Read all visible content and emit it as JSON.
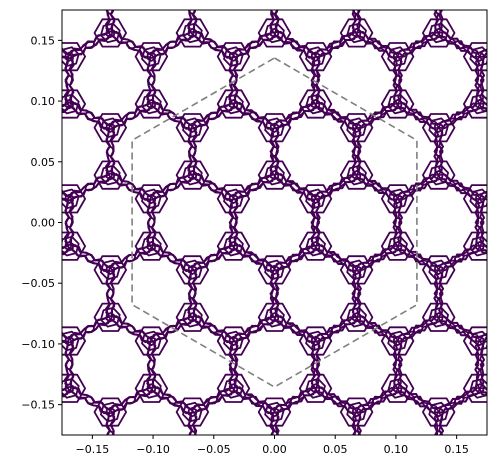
{
  "chart_data": {
    "type": "contour",
    "title": "",
    "xlabel": "",
    "ylabel": "",
    "xlim": [
      -0.175,
      0.175
    ],
    "ylim": [
      -0.175,
      0.175
    ],
    "xticks": [
      -0.15,
      -0.1,
      -0.05,
      0.0,
      0.05,
      0.1,
      0.15
    ],
    "xtick_labels": [
      "−0.15",
      "−0.10",
      "−0.05",
      "0.00",
      "0.05",
      "0.10",
      "0.15"
    ],
    "yticks": [
      0.15,
      0.1,
      0.05,
      0.0,
      -0.05,
      -0.1,
      -0.15
    ],
    "ytick_labels": [
      "0.15",
      "0.10",
      "0.05",
      "0.00",
      "−0.05",
      "−0.10",
      "−0.15"
    ],
    "grid": false,
    "contour_color": "#440154",
    "lattice_spacing": 0.0676,
    "hexagon_vertices": [
      [
        0.0,
        0.1355
      ],
      [
        0.1173,
        0.0677
      ],
      [
        0.1173,
        -0.0677
      ],
      [
        0.0,
        -0.1355
      ],
      [
        -0.1173,
        -0.0677
      ],
      [
        -0.1173,
        0.0677
      ]
    ],
    "hexagon_color": "#808080",
    "hexagon_style": "dashed"
  }
}
